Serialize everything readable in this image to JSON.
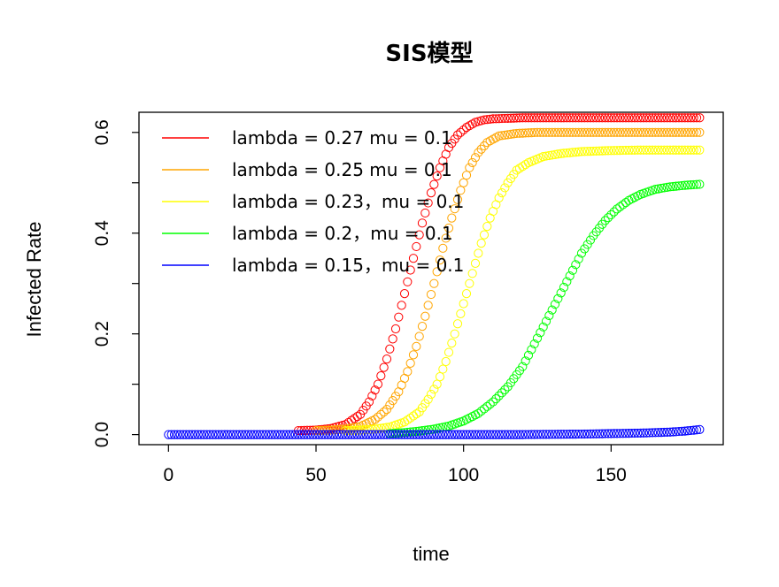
{
  "chart_data": {
    "type": "scatter",
    "title": "SIS模型",
    "xlabel": "time",
    "ylabel": "Infected Rate",
    "xlim": [
      -10,
      188
    ],
    "ylim": [
      -0.02,
      0.64
    ],
    "xticks": [
      "0",
      "50",
      "100",
      "150"
    ],
    "yticks": [
      "0.0",
      "0.2",
      "0.4",
      "0.6"
    ],
    "legend": {
      "placement": "top-left",
      "entries": [
        {
          "label": "lambda = 0.27 mu = 0.1",
          "color": "#ff0000"
        },
        {
          "label": "lambda = 0.25 mu = 0.1",
          "color": "#ffa500"
        },
        {
          "label": "lambda = 0.23，mu = 0.1",
          "color": "#ffff00"
        },
        {
          "label": "lambda = 0.2，mu = 0.1",
          "color": "#00ff00"
        },
        {
          "label": "lambda = 0.15，mu = 0.1",
          "color": "#0000ff"
        }
      ]
    },
    "series": [
      {
        "name": "lambda = 0.27 mu = 0.1",
        "color": "#ff0000",
        "x": [
          44,
          50,
          55,
          60,
          65,
          68,
          71,
          74,
          77,
          80,
          83,
          86,
          89,
          92,
          95,
          98,
          101,
          104,
          107,
          110,
          115,
          120,
          130,
          140,
          150,
          160,
          170,
          180
        ],
        "y": [
          0.008,
          0.009,
          0.012,
          0.02,
          0.04,
          0.065,
          0.1,
          0.15,
          0.21,
          0.28,
          0.35,
          0.42,
          0.48,
          0.53,
          0.57,
          0.595,
          0.61,
          0.62,
          0.625,
          0.627,
          0.628,
          0.629,
          0.629,
          0.629,
          0.629,
          0.629,
          0.629,
          0.629
        ]
      },
      {
        "name": "lambda = 0.25 mu = 0.1",
        "color": "#ffa500",
        "x": [
          50,
          55,
          60,
          65,
          70,
          74,
          78,
          81,
          84,
          87,
          90,
          93,
          96,
          99,
          102,
          105,
          108,
          112,
          118,
          125,
          135,
          145,
          155,
          165,
          175,
          180
        ],
        "y": [
          0.008,
          0.009,
          0.011,
          0.016,
          0.03,
          0.05,
          0.085,
          0.125,
          0.175,
          0.235,
          0.3,
          0.37,
          0.43,
          0.485,
          0.53,
          0.56,
          0.58,
          0.593,
          0.598,
          0.6,
          0.6,
          0.6,
          0.6,
          0.6,
          0.6,
          0.6
        ]
      },
      {
        "name": "lambda = 0.23，mu = 0.1",
        "color": "#ffff00",
        "x": [
          60,
          65,
          70,
          75,
          80,
          85,
          88,
          91,
          94,
          97,
          100,
          103,
          106,
          109,
          112,
          115,
          118,
          122,
          127,
          133,
          140,
          150,
          160,
          170,
          180
        ],
        "y": [
          0.008,
          0.009,
          0.011,
          0.015,
          0.025,
          0.045,
          0.07,
          0.1,
          0.145,
          0.2,
          0.26,
          0.32,
          0.38,
          0.43,
          0.47,
          0.5,
          0.525,
          0.54,
          0.552,
          0.558,
          0.562,
          0.564,
          0.565,
          0.565,
          0.565
        ]
      },
      {
        "name": "lambda = 0.2，mu = 0.1",
        "color": "#00ff00",
        "x": [
          75,
          80,
          85,
          90,
          95,
          100,
          105,
          110,
          115,
          120,
          124,
          128,
          132,
          136,
          140,
          144,
          148,
          152,
          156,
          160,
          165,
          170,
          175,
          180
        ],
        "y": [
          0.002,
          0.004,
          0.007,
          0.011,
          0.017,
          0.027,
          0.042,
          0.065,
          0.095,
          0.135,
          0.18,
          0.225,
          0.27,
          0.315,
          0.36,
          0.395,
          0.425,
          0.448,
          0.465,
          0.477,
          0.487,
          0.492,
          0.495,
          0.497
        ]
      },
      {
        "name": "lambda = 0.15，mu = 0.1",
        "color": "#0000ff",
        "x": [
          0,
          20,
          40,
          60,
          80,
          100,
          120,
          140,
          150,
          160,
          165,
          170,
          175,
          180
        ],
        "y": [
          0.0,
          0.0,
          0.0,
          0.0,
          0.0,
          0.0,
          0.0,
          0.001,
          0.002,
          0.003,
          0.004,
          0.005,
          0.007,
          0.01
        ]
      }
    ]
  }
}
